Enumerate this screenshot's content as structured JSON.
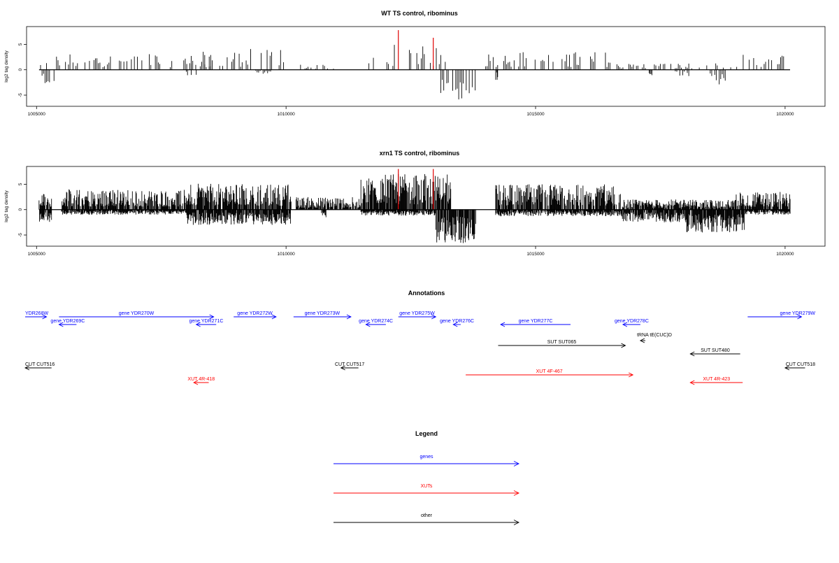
{
  "chart_data": [
    {
      "type": "bar",
      "title": "WT TS control, ribominus",
      "xlabel": "",
      "ylabel": "log2 tag density",
      "xlim": [
        1004800,
        1020800
      ],
      "ylim": [
        -7.2,
        8.5
      ],
      "xticks": [
        1005000,
        1010000,
        1015000,
        1020000
      ],
      "xtick_labels": [
        "1005000",
        "1010000",
        "1015000",
        "1020000"
      ],
      "yticks": [
        -5,
        0,
        5
      ],
      "ytick_labels": [
        "-5",
        "0",
        "5"
      ],
      "density": "sparse",
      "highlight_lines": [
        {
          "x": 1012250,
          "y": 7.8,
          "color": "#e00000"
        },
        {
          "x": 1012950,
          "y": 6.3,
          "color": "#e00000"
        }
      ],
      "plus_strand_regions": [
        {
          "from": 1005050,
          "to": 1005300,
          "max": 1.5
        },
        {
          "from": 1005400,
          "to": 1008500,
          "max": 3.3
        },
        {
          "from": 1008100,
          "to": 1009200,
          "max": 3.6
        },
        {
          "from": 1009200,
          "to": 1010000,
          "max": 4.3
        },
        {
          "from": 1010200,
          "to": 1011000,
          "max": 1.2
        },
        {
          "from": 1011600,
          "to": 1013200,
          "max": 5.0
        },
        {
          "from": 1014000,
          "to": 1016600,
          "max": 3.6
        },
        {
          "from": 1016600,
          "to": 1019100,
          "max": 1.3
        },
        {
          "from": 1019100,
          "to": 1020100,
          "max": 3.0
        }
      ],
      "minus_strand_regions": [
        {
          "from": 1005050,
          "to": 1005350,
          "min": -3.2
        },
        {
          "from": 1008000,
          "to": 1008200,
          "min": -1.1
        },
        {
          "from": 1009300,
          "to": 1009700,
          "min": -0.9
        },
        {
          "from": 1013100,
          "to": 1013800,
          "min": -6.3
        },
        {
          "from": 1014200,
          "to": 1014250,
          "min": -2.3
        },
        {
          "from": 1017200,
          "to": 1017350,
          "min": -3.1
        },
        {
          "from": 1017800,
          "to": 1018100,
          "min": -1.5
        },
        {
          "from": 1018500,
          "to": 1018850,
          "min": -3.0
        }
      ]
    },
    {
      "type": "bar",
      "title": "xrn1 TS control, ribominus",
      "xlabel": "",
      "ylabel": "log2 tag density",
      "xlim": [
        1004800,
        1020800
      ],
      "ylim": [
        -7.2,
        8.5
      ],
      "xticks": [
        1005000,
        1010000,
        1015000,
        1020000
      ],
      "xtick_labels": [
        "1005000",
        "1010000",
        "1015000",
        "1020000"
      ],
      "yticks": [
        -5,
        0,
        5
      ],
      "ytick_labels": [
        "-5",
        "0",
        "5"
      ],
      "density": "dense",
      "highlight_lines": [
        {
          "x": 1012250,
          "y": 8.0,
          "color": "#e00000"
        },
        {
          "x": 1012950,
          "y": 8.0,
          "color": "#e00000"
        }
      ],
      "plus_strand_regions": [
        {
          "from": 1005050,
          "to": 1005300,
          "max": 3.3
        },
        {
          "from": 1005500,
          "to": 1008000,
          "max": 4.0
        },
        {
          "from": 1008000,
          "to": 1010100,
          "max": 5.1
        },
        {
          "from": 1010200,
          "to": 1011500,
          "max": 2.5
        },
        {
          "from": 1011500,
          "to": 1013300,
          "max": 7.0
        },
        {
          "from": 1014200,
          "to": 1016700,
          "max": 5.0
        },
        {
          "from": 1016700,
          "to": 1019000,
          "max": 2.0
        },
        {
          "from": 1019000,
          "to": 1020100,
          "max": 3.5
        }
      ],
      "minus_strand_regions": [
        {
          "from": 1005050,
          "to": 1005300,
          "min": -2.5
        },
        {
          "from": 1005500,
          "to": 1008000,
          "min": -1.0
        },
        {
          "from": 1008000,
          "to": 1010100,
          "min": -3.0
        },
        {
          "from": 1010700,
          "to": 1010800,
          "min": -1.5
        },
        {
          "from": 1011500,
          "to": 1013000,
          "min": -1.2
        },
        {
          "from": 1013000,
          "to": 1013800,
          "min": -6.8
        },
        {
          "from": 1014200,
          "to": 1016700,
          "min": -1.3
        },
        {
          "from": 1016700,
          "to": 1018000,
          "min": -2.5
        },
        {
          "from": 1018000,
          "to": 1019200,
          "min": -4.5
        },
        {
          "from": 1019200,
          "to": 1020100,
          "min": -1.0
        }
      ]
    }
  ],
  "annotations": {
    "title": "Annotations",
    "features": [
      {
        "label": "gene YDR268W",
        "shown": "YDR268W",
        "from": 1004750,
        "to": 1005200,
        "strand": "+",
        "row": 0,
        "color": "#0000ff"
      },
      {
        "label": "gene YDR269C",
        "from": 1005450,
        "to": 1005800,
        "strand": "-",
        "row": 1,
        "color": "#0000ff"
      },
      {
        "label": "gene YDR270W",
        "from": 1005450,
        "to": 1008550,
        "strand": "+",
        "row": 0,
        "color": "#0000ff"
      },
      {
        "label": "gene YDR271C",
        "from": 1008200,
        "to": 1008600,
        "strand": "-",
        "row": 1,
        "color": "#0000ff"
      },
      {
        "label": "gene YDR272W",
        "from": 1008950,
        "to": 1009800,
        "strand": "+",
        "row": 0,
        "color": "#0000ff"
      },
      {
        "label": "gene YDR273W",
        "from": 1010150,
        "to": 1011300,
        "strand": "+",
        "row": 0,
        "color": "#0000ff"
      },
      {
        "label": "gene YDR274C",
        "from": 1011600,
        "to": 1012000,
        "strand": "-",
        "row": 1,
        "color": "#0000ff"
      },
      {
        "label": "gene YDR275W",
        "from": 1012250,
        "to": 1013000,
        "strand": "+",
        "row": 0,
        "color": "#0000ff"
      },
      {
        "label": "gene YDR276C",
        "from": 1013350,
        "to": 1013500,
        "strand": "-",
        "row": 1,
        "color": "#0000ff"
      },
      {
        "label": "gene YDR277C",
        "from": 1014300,
        "to": 1015700,
        "strand": "-",
        "row": 1,
        "color": "#0000ff"
      },
      {
        "label": "gene YDR278C",
        "from": 1016750,
        "to": 1017100,
        "strand": "-",
        "row": 1,
        "color": "#0000ff"
      },
      {
        "label": "tRNA tE(CUC)D",
        "from": 1017100,
        "to": 1017200,
        "strand": "-",
        "row": 2,
        "color": "#000000"
      },
      {
        "label": "gene YDR279W",
        "from": 1019250,
        "to": 1020330,
        "strand": "+",
        "row": 0,
        "color": "#0000ff"
      },
      {
        "label": "SUT SUT065",
        "from": 1014250,
        "to": 1016800,
        "strand": "+",
        "row": 3,
        "color": "#000000"
      },
      {
        "label": "SUT SUT480",
        "from": 1018100,
        "to": 1019100,
        "strand": "-",
        "row": 4,
        "color": "#000000"
      },
      {
        "label": "CUT CUT516",
        "shown": "CUT CUT516",
        "from": 1004750,
        "to": 1005300,
        "strand": "-",
        "row": 5,
        "color": "#000000"
      },
      {
        "label": "CUT CUT517",
        "from": 1011100,
        "to": 1011450,
        "strand": "-",
        "row": 5,
        "color": "#000000"
      },
      {
        "label": "CUT CUT518",
        "from": 1020000,
        "to": 1020400,
        "strand": "-",
        "row": 5,
        "color": "#000000"
      },
      {
        "label": "XUT 4F-467",
        "from": 1013600,
        "to": 1016950,
        "strand": "+",
        "row": 6,
        "color": "#ff0000"
      },
      {
        "label": "XUT 4R-418",
        "from": 1008150,
        "to": 1008450,
        "strand": "-",
        "row": 7,
        "color": "#ff0000"
      },
      {
        "label": "XUT 4R-423",
        "from": 1018100,
        "to": 1019150,
        "strand": "-",
        "row": 7,
        "color": "#ff0000"
      }
    ]
  },
  "legend": {
    "title": "Legend",
    "items": [
      {
        "label": "genes",
        "color": "#0000ff"
      },
      {
        "label": "XUTs",
        "color": "#ff0000"
      },
      {
        "label": "other",
        "color": "#000000"
      }
    ]
  }
}
